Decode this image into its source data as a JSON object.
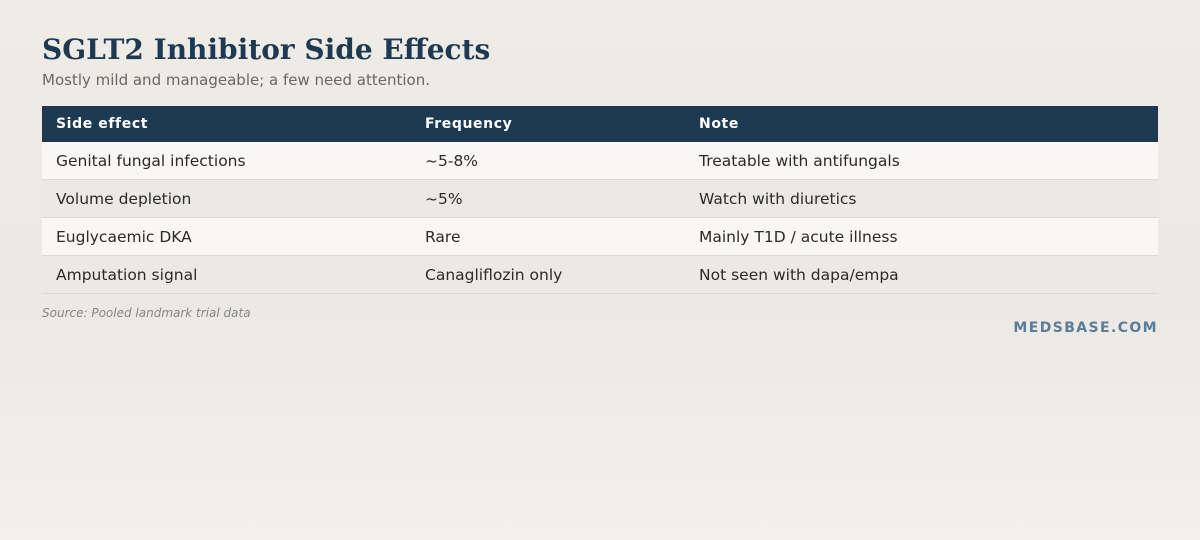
{
  "header": {
    "title": "SGLT2 Inhibitor Side Effects",
    "subtitle": "Mostly mild and manageable; a few need attention."
  },
  "table": {
    "columns": [
      "Side effect",
      "Frequency",
      "Note"
    ],
    "rows": [
      [
        "Genital fungal infections",
        "~5-8%",
        "Treatable with antifungals"
      ],
      [
        "Volume depletion",
        "~5%",
        "Watch with diuretics"
      ],
      [
        "Euglycaemic DKA",
        "Rare",
        "Mainly T1D / acute illness"
      ],
      [
        "Amputation signal",
        "Canagliflozin only",
        "Not seen with dapa/empa"
      ]
    ]
  },
  "footer": {
    "source": "Source: Pooled landmark trial data",
    "brand": "MEDSBASE.COM"
  },
  "colors": {
    "header_bg": "#1e3a52",
    "title": "#1e3a52",
    "brand": "#5a7d99"
  }
}
